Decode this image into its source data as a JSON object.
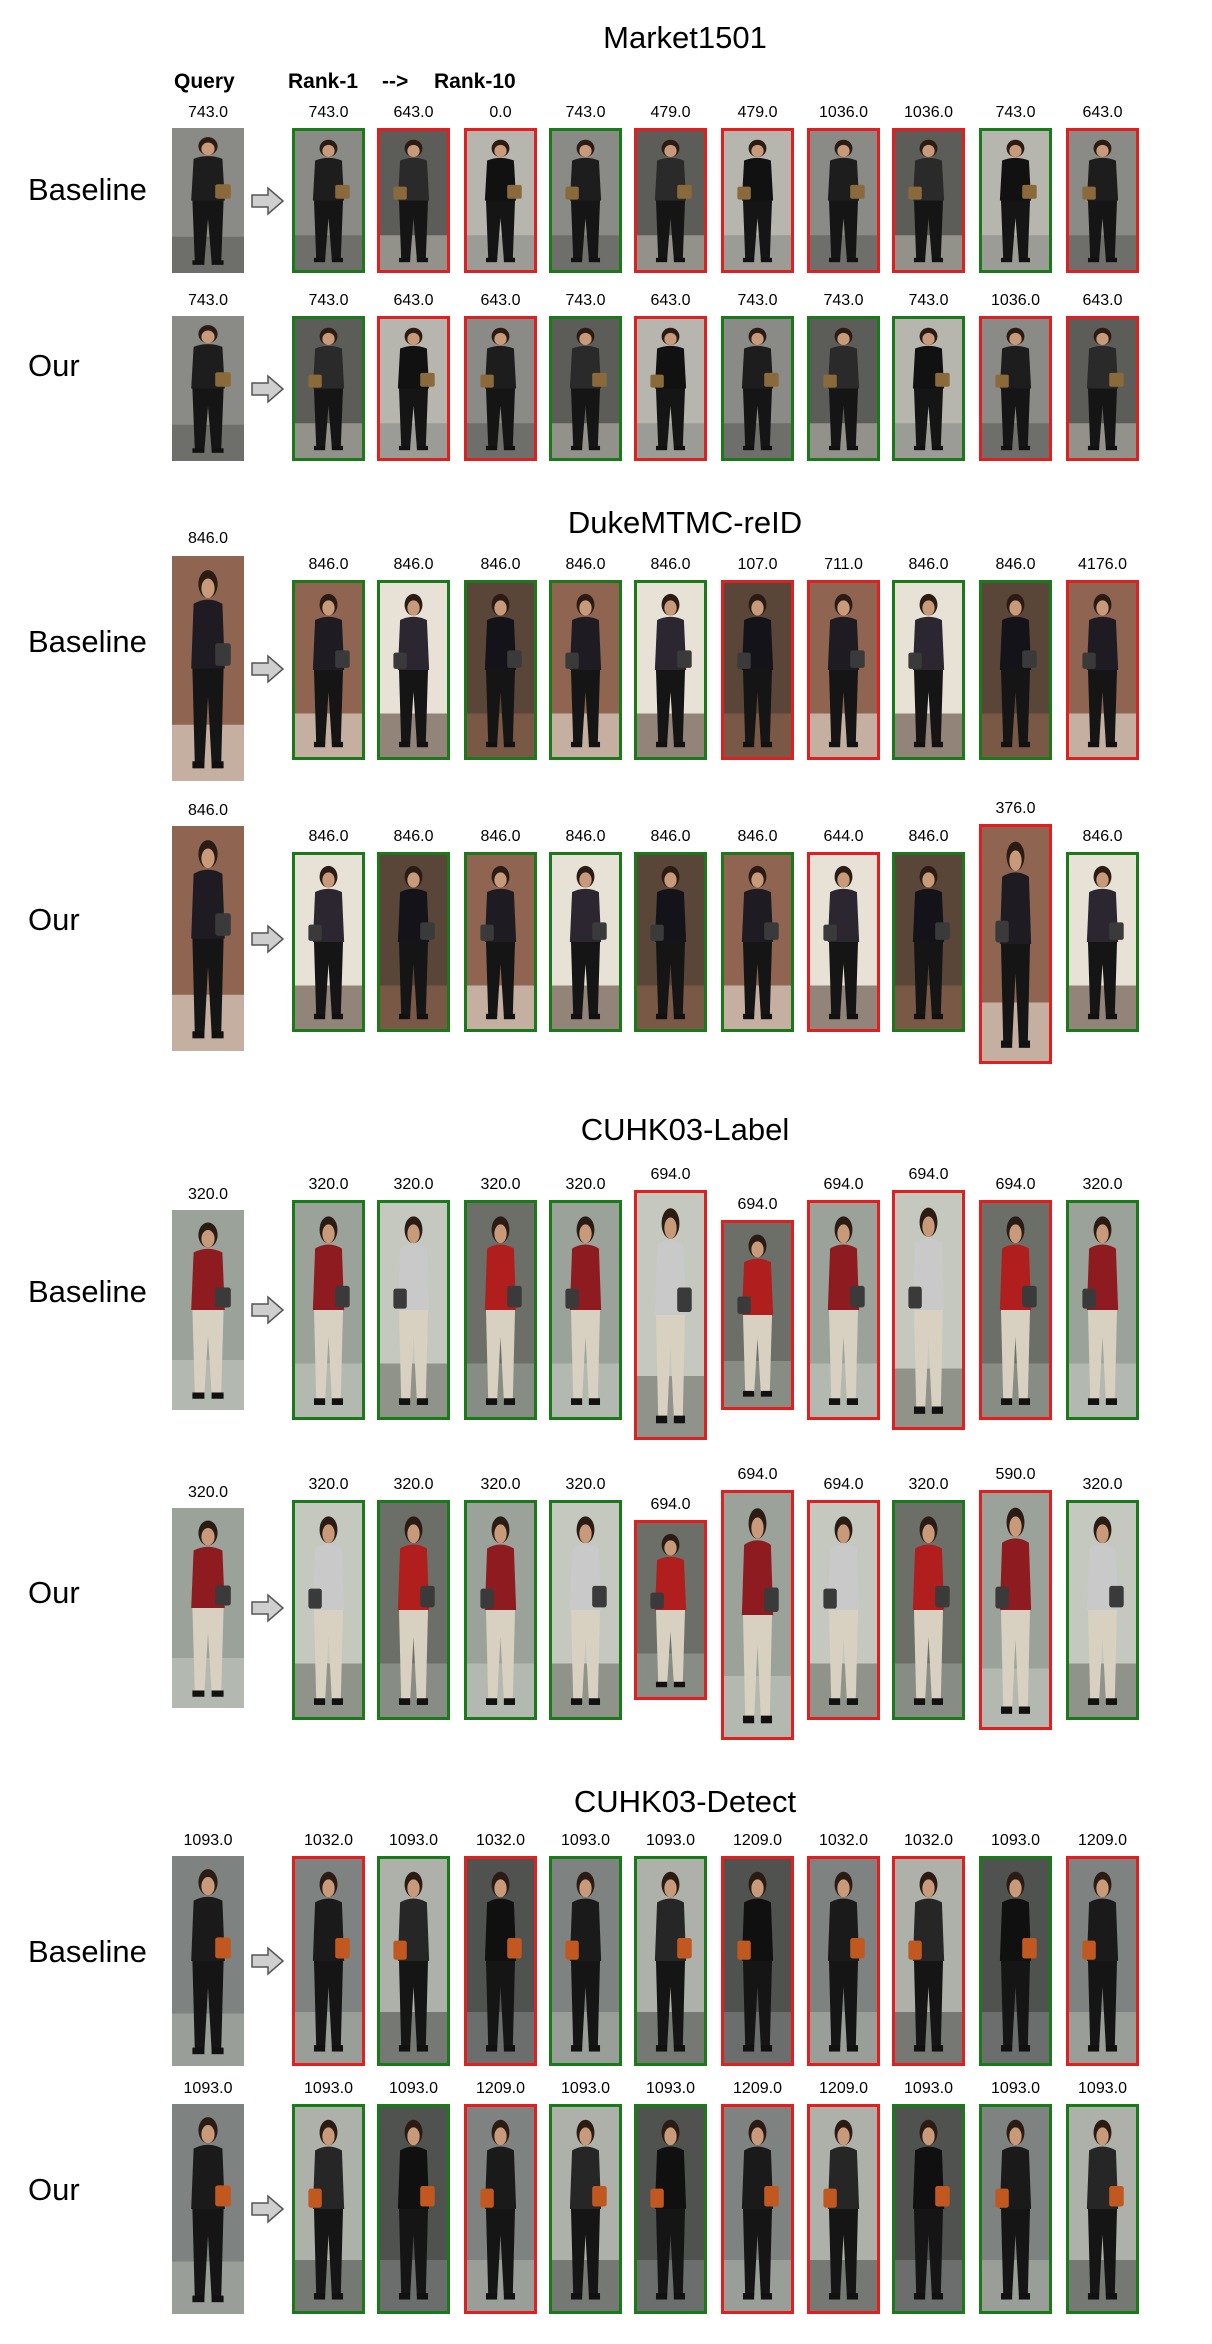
{
  "headers": {
    "query": "Query",
    "rank_start": "Rank-1",
    "arrow": "-->",
    "rank_end": "Rank-10"
  },
  "sections": [
    {
      "title": "Market1501",
      "rows": [
        {
          "label": "Baseline",
          "query_id": "743.0",
          "results": [
            {
              "id": "743.0",
              "match": true
            },
            {
              "id": "643.0",
              "match": false
            },
            {
              "id": "0.0",
              "match": false
            },
            {
              "id": "743.0",
              "match": true
            },
            {
              "id": "479.0",
              "match": false
            },
            {
              "id": "479.0",
              "match": false
            },
            {
              "id": "1036.0",
              "match": false
            },
            {
              "id": "1036.0",
              "match": false
            },
            {
              "id": "743.0",
              "match": true
            },
            {
              "id": "643.0",
              "match": false
            }
          ]
        },
        {
          "label": "Our",
          "query_id": "743.0",
          "results": [
            {
              "id": "743.0",
              "match": true
            },
            {
              "id": "643.0",
              "match": false
            },
            {
              "id": "643.0",
              "match": false
            },
            {
              "id": "743.0",
              "match": true
            },
            {
              "id": "643.0",
              "match": false
            },
            {
              "id": "743.0",
              "match": true
            },
            {
              "id": "743.0",
              "match": true
            },
            {
              "id": "743.0",
              "match": true
            },
            {
              "id": "1036.0",
              "match": false
            },
            {
              "id": "643.0",
              "match": false
            }
          ]
        }
      ]
    },
    {
      "title": "DukeMTMC-reID",
      "rows": [
        {
          "label": "Baseline",
          "query_id": "846.0",
          "results": [
            {
              "id": "846.0",
              "match": true
            },
            {
              "id": "846.0",
              "match": true
            },
            {
              "id": "846.0",
              "match": true
            },
            {
              "id": "846.0",
              "match": true
            },
            {
              "id": "846.0",
              "match": true
            },
            {
              "id": "107.0",
              "match": false
            },
            {
              "id": "711.0",
              "match": false
            },
            {
              "id": "846.0",
              "match": true
            },
            {
              "id": "846.0",
              "match": true
            },
            {
              "id": "4176.0",
              "match": false
            }
          ]
        },
        {
          "label": "Our",
          "query_id": "846.0",
          "results": [
            {
              "id": "846.0",
              "match": true
            },
            {
              "id": "846.0",
              "match": true
            },
            {
              "id": "846.0",
              "match": true
            },
            {
              "id": "846.0",
              "match": true
            },
            {
              "id": "846.0",
              "match": true
            },
            {
              "id": "846.0",
              "match": true
            },
            {
              "id": "644.0",
              "match": false
            },
            {
              "id": "846.0",
              "match": true
            },
            {
              "id": "376.0",
              "match": false
            },
            {
              "id": "846.0",
              "match": true
            }
          ]
        }
      ]
    },
    {
      "title": "CUHK03-Label",
      "rows": [
        {
          "label": "Baseline",
          "query_id": "320.0",
          "results": [
            {
              "id": "320.0",
              "match": true
            },
            {
              "id": "320.0",
              "match": true
            },
            {
              "id": "320.0",
              "match": true
            },
            {
              "id": "320.0",
              "match": true
            },
            {
              "id": "694.0",
              "match": false
            },
            {
              "id": "694.0",
              "match": false
            },
            {
              "id": "694.0",
              "match": false
            },
            {
              "id": "694.0",
              "match": false
            },
            {
              "id": "694.0",
              "match": false
            },
            {
              "id": "320.0",
              "match": true
            }
          ]
        },
        {
          "label": "Our",
          "query_id": "320.0",
          "results": [
            {
              "id": "320.0",
              "match": true
            },
            {
              "id": "320.0",
              "match": true
            },
            {
              "id": "320.0",
              "match": true
            },
            {
              "id": "320.0",
              "match": true
            },
            {
              "id": "694.0",
              "match": false
            },
            {
              "id": "694.0",
              "match": false
            },
            {
              "id": "694.0",
              "match": false
            },
            {
              "id": "320.0",
              "match": true
            },
            {
              "id": "590.0",
              "match": false
            },
            {
              "id": "320.0",
              "match": true
            }
          ]
        }
      ]
    },
    {
      "title": "CUHK03-Detect",
      "rows": [
        {
          "label": "Baseline",
          "query_id": "1093.0",
          "results": [
            {
              "id": "1032.0",
              "match": false
            },
            {
              "id": "1093.0",
              "match": true
            },
            {
              "id": "1032.0",
              "match": false
            },
            {
              "id": "1093.0",
              "match": true
            },
            {
              "id": "1093.0",
              "match": true
            },
            {
              "id": "1209.0",
              "match": false
            },
            {
              "id": "1032.0",
              "match": false
            },
            {
              "id": "1032.0",
              "match": false
            },
            {
              "id": "1093.0",
              "match": true
            },
            {
              "id": "1209.0",
              "match": false
            }
          ]
        },
        {
          "label": "Our",
          "query_id": "1093.0",
          "results": [
            {
              "id": "1093.0",
              "match": true
            },
            {
              "id": "1093.0",
              "match": true
            },
            {
              "id": "1209.0",
              "match": false
            },
            {
              "id": "1093.0",
              "match": true
            },
            {
              "id": "1093.0",
              "match": true
            },
            {
              "id": "1209.0",
              "match": false
            },
            {
              "id": "1209.0",
              "match": false
            },
            {
              "id": "1093.0",
              "match": true
            },
            {
              "id": "1093.0",
              "match": true
            },
            {
              "id": "1093.0",
              "match": true
            }
          ]
        }
      ]
    }
  ]
}
